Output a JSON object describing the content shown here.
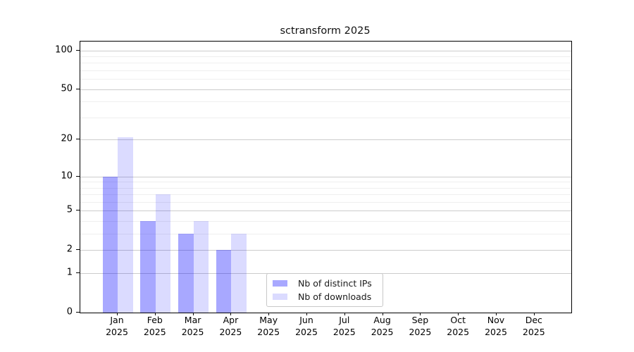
{
  "chart_data": {
    "type": "bar",
    "title": "sctransform 2025",
    "categories": [
      "Jan",
      "Feb",
      "Mar",
      "Apr",
      "May",
      "Jun",
      "Jul",
      "Aug",
      "Sep",
      "Oct",
      "Nov",
      "Dec"
    ],
    "category_year": "2025",
    "series": [
      {
        "name": "Nb of distinct IPs",
        "color": "rgba(0,0,255,0.34)",
        "values": [
          10,
          4,
          3,
          2,
          0,
          0,
          0,
          0,
          0,
          0,
          0,
          0
        ]
      },
      {
        "name": "Nb of downloads",
        "color": "rgba(0,0,255,0.14)",
        "values": [
          21,
          7,
          4,
          3,
          0,
          0,
          0,
          0,
          0,
          0,
          0,
          0
        ]
      }
    ],
    "xlabel": "",
    "ylabel": "",
    "y_scale": "log10(value+1)",
    "y_ticks": [
      0,
      1,
      2,
      5,
      10,
      20,
      50,
      100
    ],
    "y_minor_gridlines": [
      3,
      4,
      6,
      7,
      8,
      9,
      30,
      40,
      60,
      70,
      80,
      90
    ],
    "y_axis_max": 117,
    "ylim": [
      0,
      117
    ],
    "grid": "horizontal",
    "legend_position": "lower-center",
    "colors": {
      "major_gridline": "#cccccc",
      "minor_gridline": "#efefef",
      "spine": "#000000",
      "background": "#ffffff"
    }
  }
}
